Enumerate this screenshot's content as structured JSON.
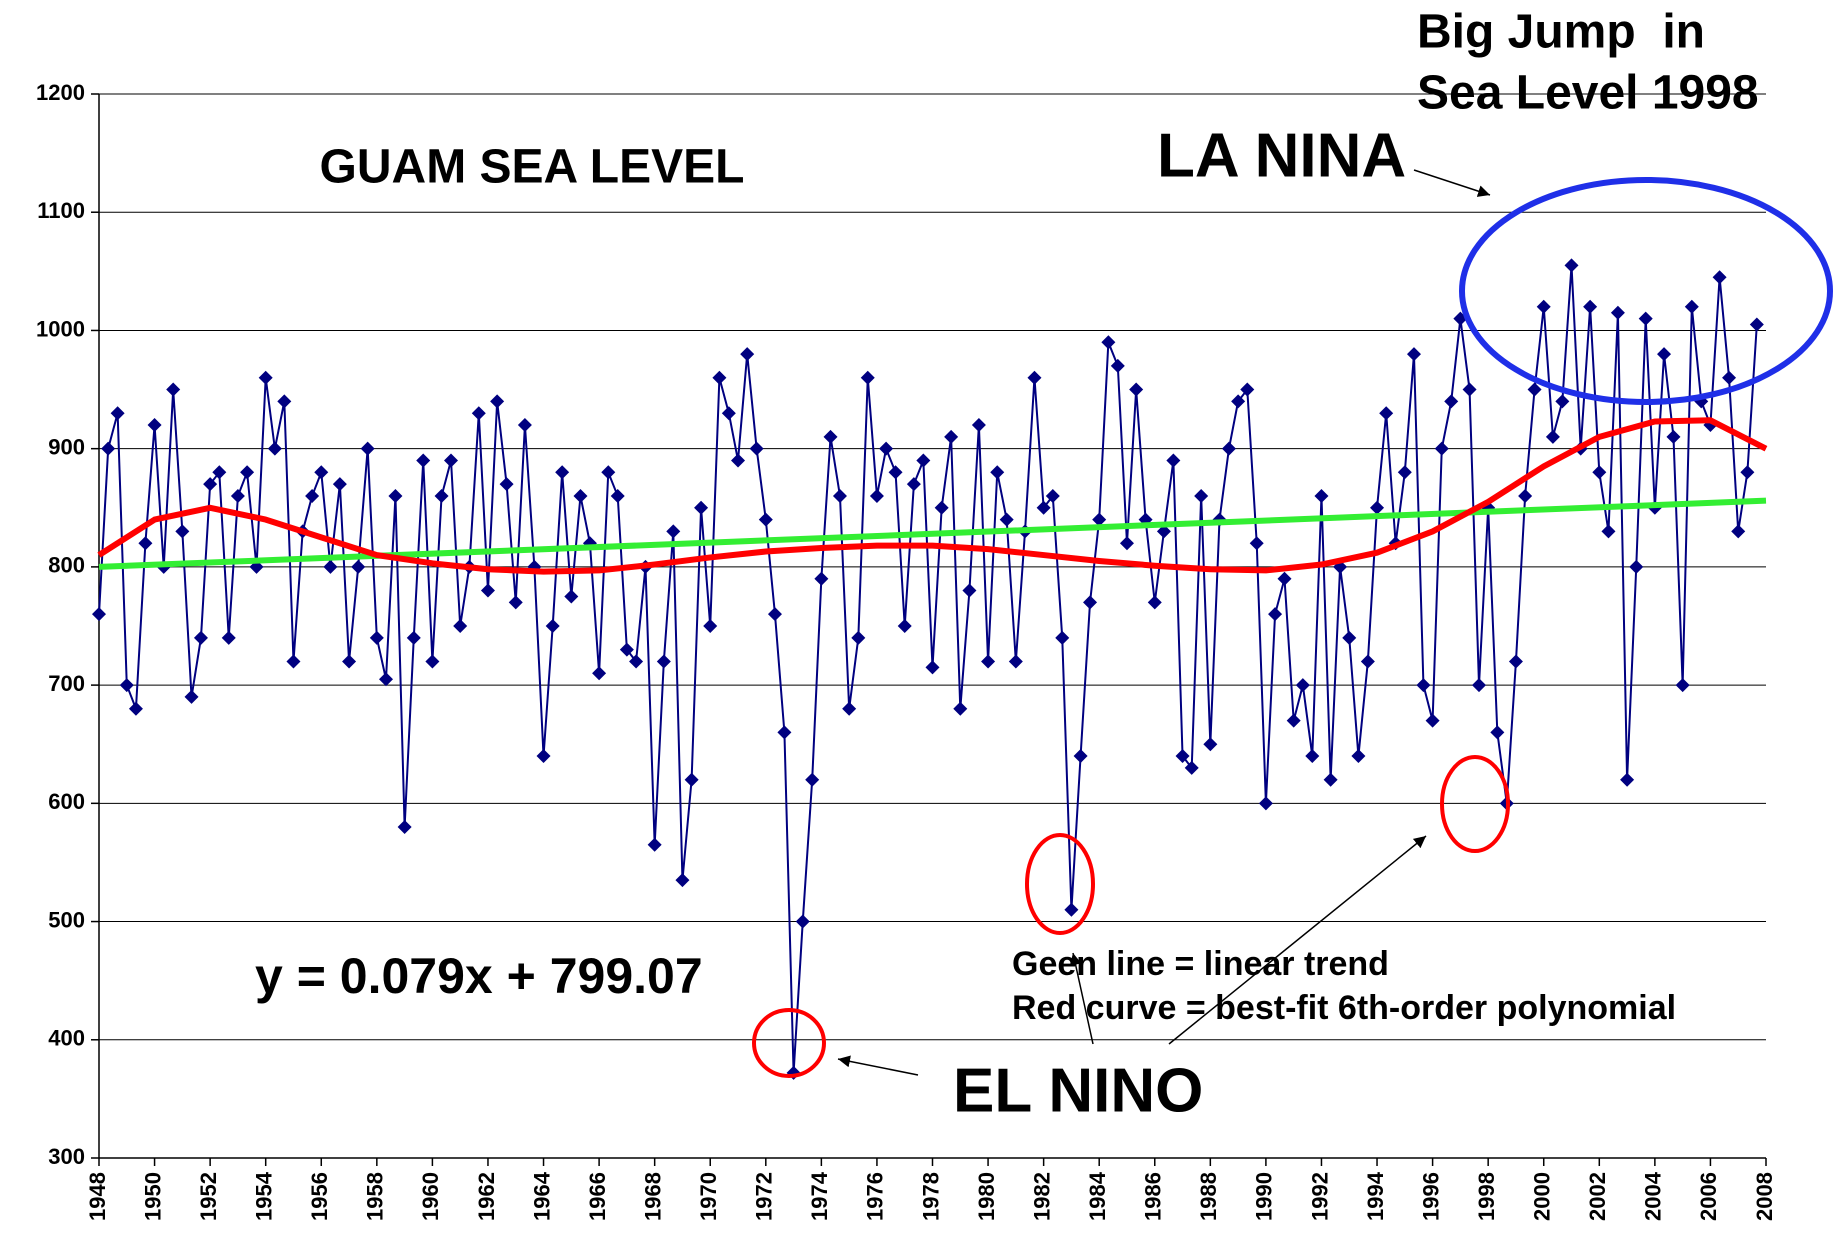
{
  "chart_data": {
    "type": "line",
    "annotations": [
      "GUAM SEA LEVEL",
      "Big Jump  in",
      "Sea Level 1998",
      "LA NINA",
      "y = 0.079x + 799.07",
      "Geen line = linear trend",
      "Red curve = best-fit 6th-order polynomial",
      "EL NINO"
    ],
    "xlim": [
      1948,
      2008
    ],
    "ylim": [
      300,
      1200
    ],
    "xticks": [
      1948,
      1950,
      1952,
      1954,
      1956,
      1958,
      1960,
      1962,
      1964,
      1966,
      1968,
      1970,
      1972,
      1974,
      1976,
      1978,
      1980,
      1982,
      1984,
      1986,
      1988,
      1990,
      1992,
      1994,
      1996,
      1998,
      2000,
      2002,
      2004,
      2006,
      2008
    ],
    "yticks": [
      300,
      400,
      500,
      600,
      700,
      800,
      900,
      1000,
      1100,
      1200
    ],
    "grid": true,
    "series": [
      {
        "color": "#000080",
        "marker": "diamond",
        "x": [
          1948,
          1948.33,
          1948.67,
          1949,
          1949.33,
          1949.67,
          1950,
          1950.33,
          1950.67,
          1951,
          1951.33,
          1951.67,
          1952,
          1952.33,
          1952.67,
          1953,
          1953.33,
          1953.67,
          1954,
          1954.33,
          1954.67,
          1955,
          1955.33,
          1955.67,
          1956,
          1956.33,
          1956.67,
          1957,
          1957.33,
          1957.67,
          1958,
          1958.33,
          1958.67,
          1959,
          1959.33,
          1959.67,
          1960,
          1960.33,
          1960.67,
          1961,
          1961.33,
          1961.67,
          1962,
          1962.33,
          1962.67,
          1963,
          1963.33,
          1963.67,
          1964,
          1964.33,
          1964.67,
          1965,
          1965.33,
          1965.67,
          1966,
          1966.33,
          1966.67,
          1967,
          1967.33,
          1967.67,
          1968,
          1968.33,
          1968.67,
          1969,
          1969.33,
          1969.67,
          1970,
          1970.33,
          1970.67,
          1971,
          1971.33,
          1971.67,
          1972,
          1972.33,
          1972.67,
          1973,
          1973.33,
          1973.67,
          1974,
          1974.33,
          1974.67,
          1975,
          1975.33,
          1975.67,
          1976,
          1976.33,
          1976.67,
          1977,
          1977.33,
          1977.67,
          1978,
          1978.33,
          1978.67,
          1979,
          1979.33,
          1979.67,
          1980,
          1980.33,
          1980.67,
          1981,
          1981.33,
          1981.67,
          1982,
          1982.33,
          1982.67,
          1983,
          1983.33,
          1983.67,
          1984,
          1984.33,
          1984.67,
          1985,
          1985.33,
          1985.67,
          1986,
          1986.33,
          1986.67,
          1987,
          1987.33,
          1987.67,
          1988,
          1988.33,
          1988.67,
          1989,
          1989.33,
          1989.67,
          1990,
          1990.33,
          1990.67,
          1991,
          1991.33,
          1991.67,
          1992,
          1992.33,
          1992.67,
          1993,
          1993.33,
          1993.67,
          1994,
          1994.33,
          1994.67,
          1995,
          1995.33,
          1995.67,
          1996,
          1996.33,
          1996.67,
          1997,
          1997.33,
          1997.67,
          1998,
          1998.33,
          1998.67,
          1999,
          1999.33,
          1999.67,
          2000,
          2000.33,
          2000.67,
          2001,
          2001.33,
          2001.67,
          2002,
          2002.33,
          2002.67,
          2003,
          2003.33,
          2003.67,
          2004,
          2004.33,
          2004.67,
          2005,
          2005.33,
          2005.67,
          2006,
          2006.33,
          2006.67,
          2007,
          2007.33,
          2007.67
        ],
        "values": [
          760,
          900,
          930,
          700,
          680,
          820,
          920,
          800,
          950,
          830,
          690,
          740,
          870,
          880,
          740,
          860,
          880,
          800,
          960,
          900,
          940,
          720,
          830,
          860,
          880,
          800,
          870,
          720,
          800,
          900,
          740,
          705,
          860,
          580,
          740,
          890,
          720,
          860,
          890,
          750,
          800,
          930,
          780,
          940,
          870,
          770,
          920,
          800,
          640,
          750,
          880,
          775,
          860,
          820,
          710,
          880,
          860,
          730,
          720,
          800,
          565,
          720,
          830,
          535,
          620,
          850,
          750,
          960,
          930,
          890,
          980,
          900,
          840,
          760,
          660,
          372,
          500,
          620,
          790,
          910,
          860,
          680,
          740,
          960,
          860,
          900,
          880,
          750,
          870,
          890,
          715,
          850,
          910,
          680,
          780,
          920,
          720,
          880,
          840,
          720,
          830,
          960,
          850,
          860,
          740,
          510,
          640,
          770,
          840,
          990,
          970,
          820,
          950,
          840,
          770,
          830,
          890,
          640,
          630,
          860,
          650,
          840,
          900,
          940,
          950,
          820,
          600,
          760,
          790,
          670,
          700,
          640,
          860,
          620,
          800,
          740,
          640,
          720,
          850,
          930,
          820,
          880,
          980,
          700,
          670,
          900,
          940,
          1010,
          950,
          700,
          850,
          660,
          600,
          720,
          860,
          950,
          1020,
          910,
          940,
          1055,
          900,
          1020,
          880,
          830,
          1015,
          620,
          800,
          1010,
          850,
          980,
          910,
          700,
          1020,
          940,
          920,
          1045,
          960,
          830,
          880,
          1005
        ]
      },
      {
        "color": "#33ee33",
        "x": [
          1948,
          2008
        ],
        "values": [
          800,
          856
        ]
      },
      {
        "color": "#ff0000",
        "x": [
          1948,
          1950,
          1952,
          1954,
          1956,
          1958,
          1960,
          1962,
          1964,
          1966,
          1968,
          1970,
          1972,
          1974,
          1976,
          1978,
          1980,
          1982,
          1984,
          1986,
          1988,
          1990,
          1992,
          1994,
          1996,
          1998,
          2000,
          2002,
          2004,
          2006,
          2008
        ],
        "values": [
          810,
          840,
          850,
          840,
          825,
          810,
          803,
          798,
          796,
          797,
          802,
          808,
          813,
          816,
          818,
          818,
          815,
          810,
          805,
          801,
          798,
          797,
          802,
          812,
          830,
          855,
          885,
          910,
          923,
          924,
          900
        ]
      }
    ]
  }
}
